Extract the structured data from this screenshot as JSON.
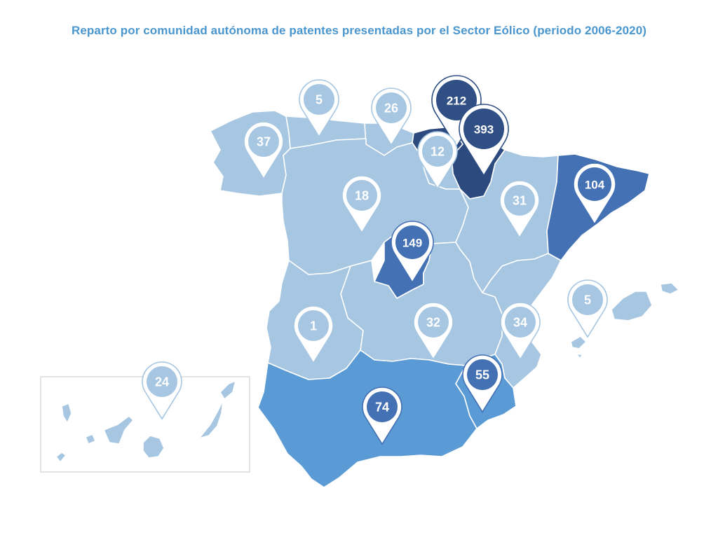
{
  "title": "Reparto por comunidad autónoma de patentes presentadas por el Sector Eólico (periodo 2006-2020)",
  "colors": {
    "title": "#4a96cf",
    "light_region": "#a6c6e1",
    "medium_region": "#5b9bd5",
    "strong_region": "#4470b4",
    "dark_region": "#2c4a7e",
    "light_pin": "#a6c6e1",
    "dark_pin": "#2f4f85",
    "medium_pin": "#4470b4"
  },
  "pins": [
    {
      "id": "galicia",
      "value": "37",
      "style": "light"
    },
    {
      "id": "asturias",
      "value": "5",
      "style": "light"
    },
    {
      "id": "cantabria",
      "value": "26",
      "style": "light"
    },
    {
      "id": "pais-vasco",
      "value": "212",
      "style": "dark"
    },
    {
      "id": "navarra",
      "value": "393",
      "style": "dark"
    },
    {
      "id": "la-rioja",
      "value": "12",
      "style": "light"
    },
    {
      "id": "castilla-leon",
      "value": "18",
      "style": "light"
    },
    {
      "id": "aragon",
      "value": "31",
      "style": "light"
    },
    {
      "id": "cataluna",
      "value": "104",
      "style": "medium"
    },
    {
      "id": "madrid",
      "value": "149",
      "style": "medium"
    },
    {
      "id": "extremadura",
      "value": "1",
      "style": "light"
    },
    {
      "id": "castilla-la-mancha",
      "value": "32",
      "style": "light"
    },
    {
      "id": "comunidad-valenciana",
      "value": "34",
      "style": "light"
    },
    {
      "id": "baleares",
      "value": "5",
      "style": "light"
    },
    {
      "id": "murcia",
      "value": "55",
      "style": "medium"
    },
    {
      "id": "andalucia",
      "value": "74",
      "style": "medium"
    },
    {
      "id": "canarias",
      "value": "24",
      "style": "light"
    }
  ]
}
